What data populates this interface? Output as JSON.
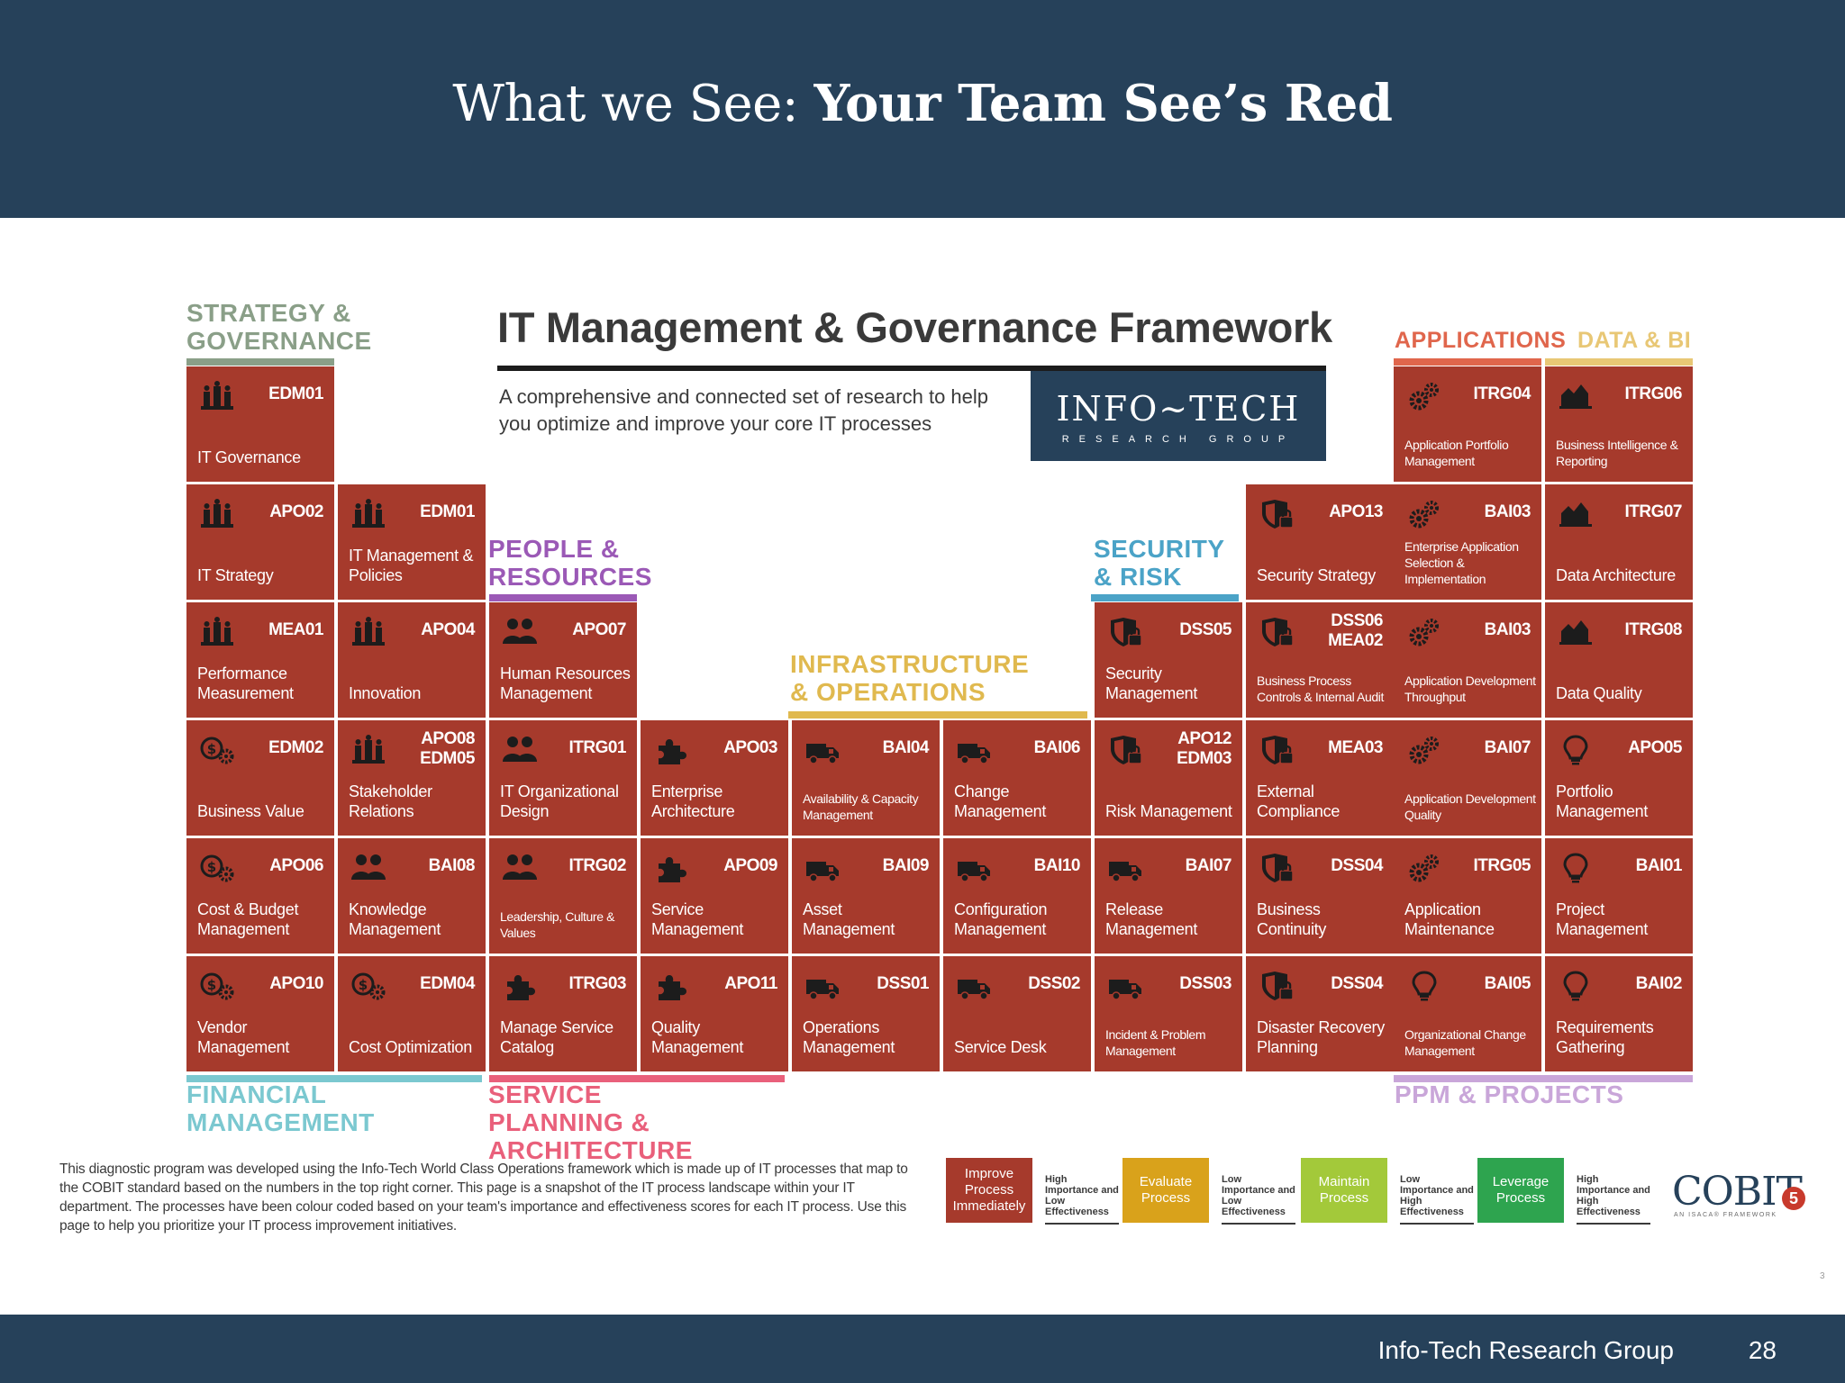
{
  "header": {
    "title_prefix": "What we See: ",
    "title_bold": "Your Team See’s Red"
  },
  "framework": {
    "title": "IT Management & Governance Framework",
    "subtitle": "A comprehensive and connected set of research to help you optimize and improve your core IT processes",
    "logo_main": "INFO~TECH",
    "logo_sub": "RESEARCH GROUP"
  },
  "colors": {
    "tile": "#a63a2c",
    "strategy": "#8a9f88",
    "people": "#9b59b6",
    "infra": "#e0b94f",
    "security": "#4ba3c7",
    "applications": "#e0664c",
    "data": "#e8c775",
    "financial": "#7bc8d0",
    "service": "#e9607b",
    "ppm": "#c9a6d9"
  },
  "categories": {
    "strategy": "STRATEGY & GOVERNANCE",
    "applications": "APPLICATIONS",
    "data": "DATA & BI",
    "people": "PEOPLE & RESOURCES",
    "security": "SECURITY & RISK",
    "infra": "INFRASTRUCTURE & OPERATIONS",
    "financial": "FINANCIAL MANAGEMENT",
    "service": "SERVICE PLANNING & ARCHITECTURE",
    "ppm": "PPM & PROJECTS"
  },
  "tiles": [
    {
      "icon": "governance-icon",
      "code": "EDM01",
      "name": "IT Governance"
    },
    {
      "icon": "settings-icon",
      "code": "ITRG04",
      "name": "Application Portfolio Management"
    },
    {
      "icon": "chart-icon",
      "code": "ITRG06",
      "name": "Business Intelligence & Reporting"
    },
    {
      "icon": "governance-icon",
      "code": "APO02",
      "name": "IT Strategy"
    },
    {
      "icon": "governance-icon",
      "code": "EDM01",
      "name": "IT Management & Policies"
    },
    {
      "icon": "shield-icon",
      "code": "APO13",
      "name": "Security Strategy"
    },
    {
      "icon": "settings-icon",
      "code": "BAI03",
      "name": "Enterprise Application Selection & Implementation"
    },
    {
      "icon": "chart-icon",
      "code": "ITRG07",
      "name": "Data Architecture"
    },
    {
      "icon": "governance-icon",
      "code": "MEA01",
      "name": "Performance Measurement"
    },
    {
      "icon": "governance-icon",
      "code": "APO04",
      "name": "Innovation"
    },
    {
      "icon": "people-icon",
      "code": "APO07",
      "name": "Human Resources Management"
    },
    {
      "icon": "shield-icon",
      "code": "DSS05",
      "name": "Security Management"
    },
    {
      "icon": "shield-icon",
      "code": "DSS06 MEA02",
      "name": "Business Process Controls & Internal Audit"
    },
    {
      "icon": "settings-icon",
      "code": "BAI03",
      "name": "Application Development Throughput"
    },
    {
      "icon": "chart-icon",
      "code": "ITRG08",
      "name": "Data Quality"
    },
    {
      "icon": "money-icon",
      "code": "EDM02",
      "name": "Business Value"
    },
    {
      "icon": "governance-icon",
      "code": "APO08 EDM05",
      "name": "Stakeholder Relations"
    },
    {
      "icon": "people-icon",
      "code": "ITRG01",
      "name": "IT Organizational Design"
    },
    {
      "icon": "puzzle-icon",
      "code": "APO03",
      "name": "Enterprise Architecture"
    },
    {
      "icon": "truck-icon",
      "code": "BAI04",
      "name": "Availability & Capacity Management"
    },
    {
      "icon": "truck-icon",
      "code": "BAI06",
      "name": "Change Management"
    },
    {
      "icon": "shield-icon",
      "code": "APO12 EDM03",
      "name": "Risk Management"
    },
    {
      "icon": "shield-icon",
      "code": "MEA03",
      "name": "External Compliance"
    },
    {
      "icon": "settings-icon",
      "code": "BAI07",
      "name": "Application Development Quality"
    },
    {
      "icon": "bulb-icon",
      "code": "APO05",
      "name": "Portfolio Management"
    },
    {
      "icon": "money-icon",
      "code": "APO06",
      "name": "Cost & Budget Management"
    },
    {
      "icon": "people-icon",
      "code": "BAI08",
      "name": "Knowledge Management"
    },
    {
      "icon": "people-icon",
      "code": "ITRG02",
      "name": "Leadership, Culture & Values"
    },
    {
      "icon": "puzzle-icon",
      "code": "APO09",
      "name": "Service Management"
    },
    {
      "icon": "truck-icon",
      "code": "BAI09",
      "name": "Asset Management"
    },
    {
      "icon": "truck-icon",
      "code": "BAI10",
      "name": "Configuration Management"
    },
    {
      "icon": "truck-icon",
      "code": "BAI07",
      "name": "Release Management"
    },
    {
      "icon": "shield-icon",
      "code": "DSS04",
      "name": "Business Continuity"
    },
    {
      "icon": "settings-icon",
      "code": "ITRG05",
      "name": "Application Maintenance"
    },
    {
      "icon": "bulb-icon",
      "code": "BAI01",
      "name": "Project Management"
    },
    {
      "icon": "money-icon",
      "code": "APO10",
      "name": "Vendor Management"
    },
    {
      "icon": "money-icon",
      "code": "EDM04",
      "name": "Cost Optimization"
    },
    {
      "icon": "puzzle-icon",
      "code": "ITRG03",
      "name": "Manage Service Catalog"
    },
    {
      "icon": "puzzle-icon",
      "code": "APO11",
      "name": "Quality Management"
    },
    {
      "icon": "truck-icon",
      "code": "DSS01",
      "name": "Operations Management"
    },
    {
      "icon": "truck-icon",
      "code": "DSS02",
      "name": "Service Desk"
    },
    {
      "icon": "truck-icon",
      "code": "DSS03",
      "name": "Incident & Problem Management"
    },
    {
      "icon": "shield-icon",
      "code": "DSS04",
      "name": "Disaster Recovery Planning"
    },
    {
      "icon": "bulb-icon",
      "code": "BAI05",
      "name": "Organizational Change Management"
    },
    {
      "icon": "bulb-icon",
      "code": "BAI02",
      "name": "Requirements Gathering"
    }
  ],
  "footnote": "This diagnostic program was developed using the Info-Tech World Class Operations framework which is made up of IT processes that map to the COBIT standard based on the numbers in the top right corner. This page is a snapshot of the IT process landscape within your IT department. The processes have been colour coded based on your team's importance and effectiveness scores for each IT process. Use this page to help you prioritize your IT process improvement initiatives.",
  "legend": [
    {
      "label": "Improve Process Immediately",
      "desc": "High Importance and Low Effectiveness",
      "color": "#a63a2c"
    },
    {
      "label": "Evaluate Process",
      "desc": "Low Importance and Low Effectiveness",
      "color": "#d9a21b"
    },
    {
      "label": "Maintain Process",
      "desc": "Low Importance and High Effectiveness",
      "color": "#a3c93a"
    },
    {
      "label": "Leverage Process",
      "desc": "High Importance and High Effectiveness",
      "color": "#2ea44f"
    }
  ],
  "cobit": {
    "word": "COBIT",
    "number": "5",
    "tagline": "AN ISACA® FRAMEWORK"
  },
  "footer": {
    "org": "Info-Tech Research Group",
    "page": "28",
    "slide_small_number": "3"
  }
}
